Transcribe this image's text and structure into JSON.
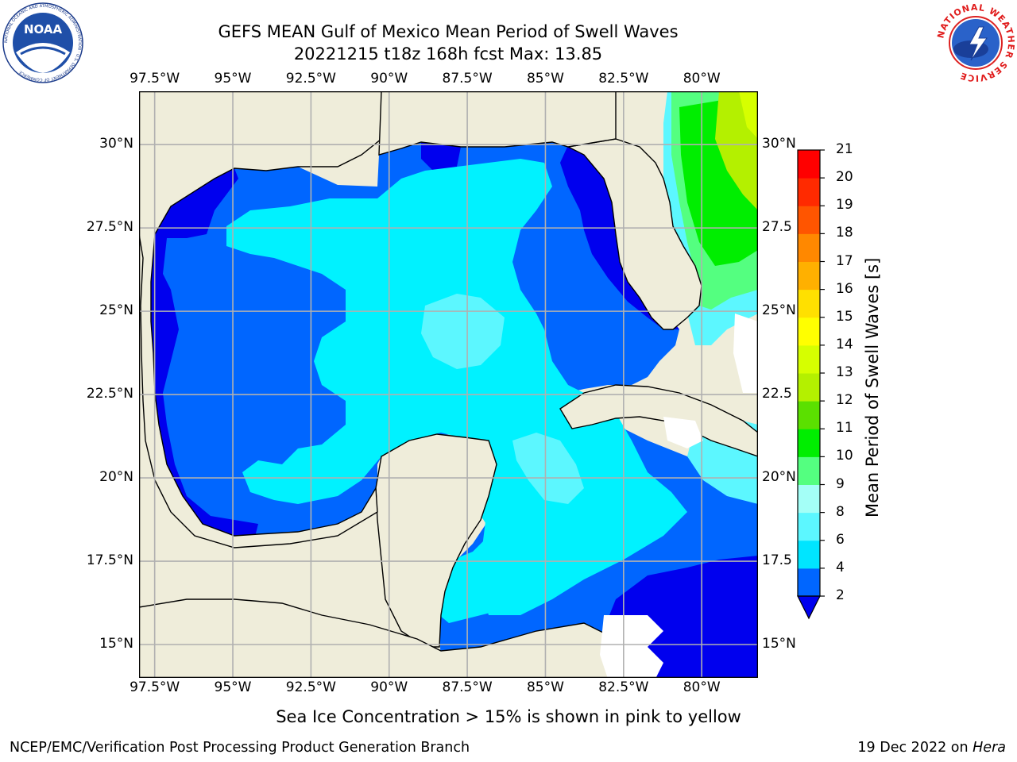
{
  "header": {
    "title_line1": "GEFS MEAN Gulf of Mexico Mean Period of Swell Waves",
    "title_line2": "20221215 t18z 168h fcst   Max: 13.85"
  },
  "logos": {
    "noara_text": "NOAA",
    "noaa_ring_text": "NATIONAL OCEANIC AND ATMOSPHERIC ADMINISTRATION · U.S. DEPARTMENT OF COMMERCE",
    "nws_ring_text": "NATIONAL WEATHER SERVICE"
  },
  "map": {
    "lon_labels": [
      "97.5°W",
      "95°W",
      "92.5°W",
      "90°W",
      "87.5°W",
      "85°W",
      "82.5°W",
      "80°W"
    ],
    "lat_labels_left": [
      "30°N",
      "27.5°N",
      "25°N",
      "22.5°N",
      "20°N",
      "17.5°N",
      "15°N"
    ],
    "lat_labels_right": [
      "30°N",
      "27.5",
      "25°N",
      "22.5",
      "20°N",
      "17.5",
      "15°N"
    ],
    "lon_values": [
      -97.5,
      -95,
      -92.5,
      -90,
      -87.5,
      -85,
      -82.5,
      -80
    ],
    "lat_values": [
      30,
      27.5,
      25,
      22.5,
      20,
      17.5,
      15
    ],
    "extent": {
      "lon_min": -98,
      "lon_max": -78.2,
      "lat_min": 14,
      "lat_max": 31.6
    },
    "land_color": "#efedda",
    "grid_color": "#b0b0b0"
  },
  "colorbar": {
    "label": "Mean Period of Swell Waves [s]",
    "ticks": [
      "2",
      "4",
      "6",
      "8",
      "9",
      "10",
      "11",
      "12",
      "13",
      "14",
      "15",
      "16",
      "17",
      "18",
      "19",
      "20",
      "21"
    ],
    "tick_values": [
      2,
      4,
      6,
      8,
      9,
      10,
      11,
      12,
      13,
      14,
      15,
      16,
      17,
      18,
      19,
      20,
      21
    ],
    "colors": [
      "#0066ff",
      "#00e5ff",
      "#5cf7ff",
      "#a4fff7",
      "#54ff80",
      "#00ee00",
      "#5be000",
      "#b4f000",
      "#d6ff00",
      "#ffff00",
      "#ffe000",
      "#ffb000",
      "#ff8800",
      "#ff5500",
      "#ff2a00",
      "#ff0000"
    ],
    "extend_color": "#0000ee"
  },
  "footer": {
    "subtitle": "Sea Ice Concentration > 15% is shown in pink to yellow",
    "left": "NCEP/EMC/Verification Post Processing Product Generation Branch",
    "date": "19 Dec 2022 on ",
    "machine": "Hera"
  }
}
